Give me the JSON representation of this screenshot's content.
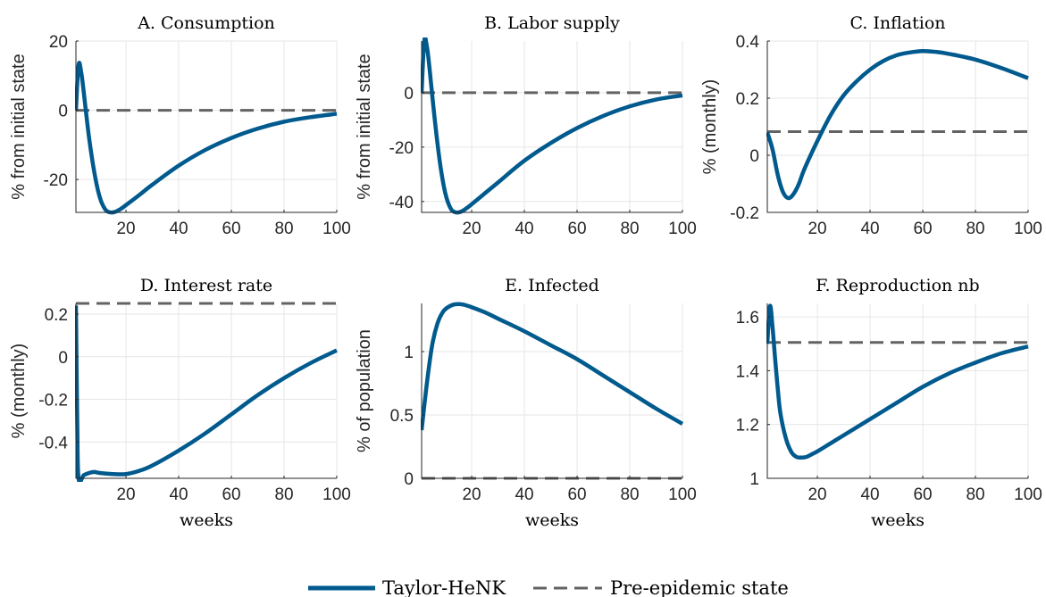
{
  "figure": {
    "legend": {
      "main_label": "Taylor-HeNK",
      "dashed_label": "Pre-epidemic state"
    },
    "colors": {
      "main": "#005A8E",
      "dashed": "#636363"
    }
  },
  "chart_data": [
    {
      "type": "line",
      "title": "A. Consumption",
      "xlabel": "",
      "ylabel": "% from initial state",
      "xlim": [
        1,
        100
      ],
      "ylim": [
        -29.5,
        20
      ],
      "xticks": [
        20,
        40,
        60,
        80,
        100
      ],
      "yticks": [
        -20,
        0,
        20
      ],
      "grid": true,
      "series": [
        {
          "name": "Taylor-HeNK",
          "style": "solid",
          "x": [
            1,
            2,
            3,
            4,
            6,
            8,
            10,
            12,
            14,
            16,
            18,
            20,
            25,
            30,
            40,
            50,
            60,
            70,
            80,
            90,
            100
          ],
          "y": [
            0,
            13,
            11,
            5,
            -8,
            -18,
            -25,
            -28.5,
            -29.5,
            -29.3,
            -28.5,
            -27.4,
            -24.5,
            -21.5,
            -16,
            -11.5,
            -8,
            -5.3,
            -3.3,
            -2,
            -1
          ]
        },
        {
          "name": "Pre-epidemic state",
          "style": "dashed",
          "x": [
            1,
            100
          ],
          "y": [
            0,
            0
          ]
        }
      ]
    },
    {
      "type": "line",
      "title": "B. Labor supply",
      "xlabel": "",
      "ylabel": "% from initial state",
      "xlim": [
        1,
        100
      ],
      "ylim": [
        -44,
        19
      ],
      "xticks": [
        20,
        40,
        60,
        80,
        100
      ],
      "yticks": [
        -40,
        -20,
        0
      ],
      "grid": true,
      "series": [
        {
          "name": "Taylor-HeNK",
          "style": "solid",
          "x": [
            1,
            2,
            3,
            4,
            6,
            8,
            10,
            12,
            14,
            16,
            18,
            20,
            25,
            30,
            40,
            50,
            60,
            70,
            80,
            90,
            100
          ],
          "y": [
            0,
            19,
            17,
            9,
            -10,
            -26,
            -37,
            -42.5,
            -44,
            -43.7,
            -42.5,
            -41,
            -37,
            -33,
            -25,
            -18.5,
            -13,
            -8.5,
            -5,
            -2.5,
            -1
          ]
        },
        {
          "name": "Pre-epidemic state",
          "style": "dashed",
          "x": [
            1,
            100
          ],
          "y": [
            0,
            0
          ]
        }
      ]
    },
    {
      "type": "line",
      "title": "C. Inflation",
      "xlabel": "",
      "ylabel": "%  (monthly)",
      "xlim": [
        1,
        100
      ],
      "ylim": [
        -0.2,
        0.4
      ],
      "xticks": [
        20,
        40,
        60,
        80,
        100
      ],
      "yticks": [
        -0.2,
        0,
        0.2,
        0.4
      ],
      "grid": true,
      "series": [
        {
          "name": "Taylor-HeNK",
          "style": "solid",
          "x": [
            1,
            3,
            5,
            7,
            9,
            11,
            13,
            15,
            20,
            25,
            30,
            35,
            40,
            45,
            50,
            55,
            60,
            65,
            70,
            80,
            90,
            100
          ],
          "y": [
            0.08,
            0.02,
            -0.07,
            -0.13,
            -0.15,
            -0.135,
            -0.1,
            -0.05,
            0.05,
            0.14,
            0.21,
            0.26,
            0.3,
            0.33,
            0.35,
            0.36,
            0.365,
            0.362,
            0.355,
            0.335,
            0.305,
            0.27
          ]
        },
        {
          "name": "Pre-epidemic state",
          "style": "dashed",
          "x": [
            1,
            100
          ],
          "y": [
            0.083,
            0.083
          ]
        }
      ]
    },
    {
      "type": "line",
      "title": "D. Interest rate",
      "xlabel": "weeks",
      "ylabel": "%  (monthly)",
      "xlim": [
        1,
        100
      ],
      "ylim": [
        -0.57,
        0.25
      ],
      "xticks": [
        20,
        40,
        60,
        80,
        100
      ],
      "yticks": [
        -0.4,
        -0.2,
        0,
        0.2
      ],
      "grid": true,
      "series": [
        {
          "name": "Taylor-HeNK",
          "style": "solid",
          "x": [
            1,
            1.5,
            2,
            4,
            6,
            8,
            10,
            15,
            20,
            25,
            30,
            40,
            50,
            60,
            70,
            80,
            90,
            100
          ],
          "y": [
            0.24,
            -0.3,
            -0.57,
            -0.555,
            -0.545,
            -0.54,
            -0.545,
            -0.55,
            -0.55,
            -0.535,
            -0.51,
            -0.44,
            -0.36,
            -0.27,
            -0.18,
            -0.1,
            -0.03,
            0.03
          ]
        },
        {
          "name": "Pre-epidemic state",
          "style": "dashed",
          "x": [
            1,
            100
          ],
          "y": [
            0.25,
            0.25
          ]
        }
      ]
    },
    {
      "type": "line",
      "title": "E. Infected",
      "xlabel": "weeks",
      "ylabel": "% of population",
      "xlim": [
        1,
        100
      ],
      "ylim": [
        0,
        1.38
      ],
      "xticks": [
        20,
        40,
        60,
        80,
        100
      ],
      "yticks": [
        0,
        0.5,
        1
      ],
      "grid": true,
      "series": [
        {
          "name": "Taylor-HeNK",
          "style": "solid",
          "x": [
            1,
            3,
            5,
            7,
            9,
            11,
            13,
            15,
            17,
            20,
            25,
            30,
            40,
            50,
            60,
            70,
            80,
            90,
            100
          ],
          "y": [
            0.38,
            0.75,
            1.05,
            1.22,
            1.31,
            1.35,
            1.37,
            1.375,
            1.37,
            1.35,
            1.31,
            1.26,
            1.16,
            1.05,
            0.94,
            0.81,
            0.68,
            0.55,
            0.43
          ]
        },
        {
          "name": "Pre-epidemic state",
          "style": "dashed",
          "x": [
            1,
            100
          ],
          "y": [
            0,
            0
          ]
        }
      ]
    },
    {
      "type": "line",
      "title": "F. Reproduction nb",
      "xlabel": "weeks",
      "ylabel": "",
      "xlim": [
        1,
        100
      ],
      "ylim": [
        1,
        1.65
      ],
      "xticks": [
        20,
        40,
        60,
        80,
        100
      ],
      "yticks": [
        1,
        1.2,
        1.4,
        1.6
      ],
      "grid": true,
      "series": [
        {
          "name": "Taylor-HeNK",
          "style": "solid",
          "x": [
            1,
            2,
            3,
            4,
            5,
            6,
            8,
            10,
            12,
            14,
            16,
            18,
            20,
            25,
            30,
            40,
            50,
            60,
            70,
            80,
            90,
            100
          ],
          "y": [
            1.5,
            1.64,
            1.56,
            1.44,
            1.33,
            1.24,
            1.15,
            1.1,
            1.08,
            1.077,
            1.08,
            1.09,
            1.1,
            1.13,
            1.16,
            1.22,
            1.28,
            1.34,
            1.39,
            1.43,
            1.465,
            1.49
          ]
        },
        {
          "name": "Pre-epidemic state",
          "style": "dashed",
          "x": [
            1,
            100
          ],
          "y": [
            1.505,
            1.505
          ]
        }
      ]
    }
  ]
}
